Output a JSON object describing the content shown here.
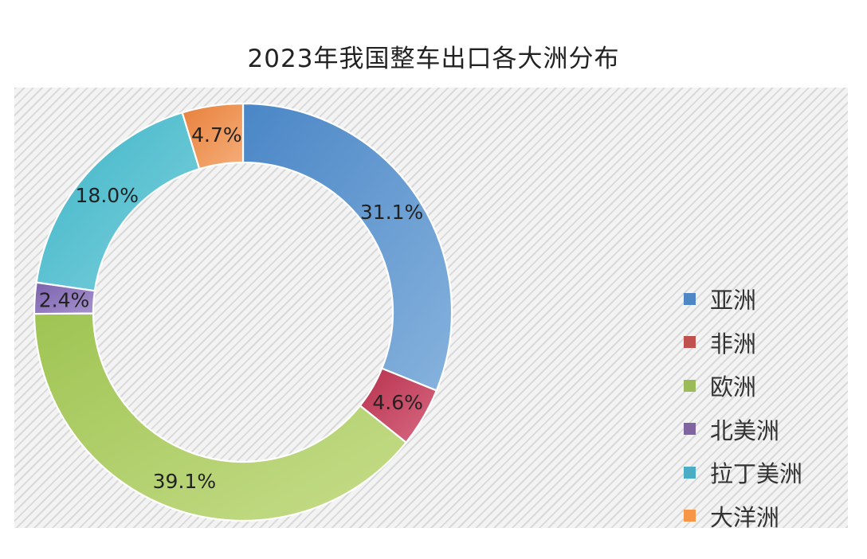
{
  "title": "2023年我国整车出口各大洲分布",
  "chart_data": {
    "type": "pie",
    "donut": true,
    "title": "2023年我国整车出口各大洲分布",
    "legend_position": "right",
    "unit": "%",
    "categories": [
      "亚洲",
      "非洲",
      "欧洲",
      "北美洲",
      "拉丁美洲",
      "大洋洲"
    ],
    "values": [
      31.1,
      4.6,
      39.1,
      2.4,
      18.0,
      4.7
    ],
    "labels": [
      "31.1%",
      "4.6%",
      "39.1%",
      "2.4%",
      "18.0%",
      "4.7%"
    ],
    "colors": [
      [
        "#4a86c6",
        "#86b2dd"
      ],
      [
        "#b8324d",
        "#d86a84"
      ],
      [
        "#9fc453",
        "#c6dd8a"
      ],
      [
        "#7b62ac",
        "#a692cf"
      ],
      [
        "#3db5c8",
        "#7fd0dc"
      ],
      [
        "#e8803c",
        "#f5ae79"
      ]
    ],
    "legend_colors": [
      "#4f86c6",
      "#c0504d",
      "#9bbb59",
      "#8064a2",
      "#4bacc6",
      "#f79646"
    ]
  }
}
